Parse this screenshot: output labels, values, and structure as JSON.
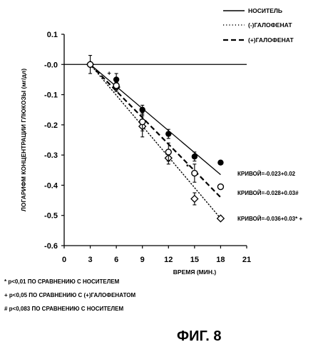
{
  "chart_data": {
    "type": "line",
    "xlabel": "ВРЕМЯ (МИН.)",
    "ylabel": "ЛОГАРИФМ КОНЦЕНТРАЦИИ ГЛЮКОЗЫ (мг/дл)",
    "xlim": [
      0,
      21
    ],
    "ylim": [
      -0.6,
      0.1
    ],
    "xticks": [
      0,
      3,
      6,
      9,
      12,
      15,
      18,
      21
    ],
    "yticks": [
      0.1,
      0.0,
      -0.1,
      -0.2,
      -0.3,
      -0.4,
      -0.5,
      -0.6
    ],
    "ytick_labels": [
      "0.1",
      "-0.0",
      "-0.1",
      "-0.2",
      "-0.3",
      "-0.4",
      "-0.5",
      "-0.6"
    ],
    "series": [
      {
        "name": "НОСИТЕЛЬ",
        "line_style": "solid",
        "marker": "filled-circle",
        "x": [
          3,
          6,
          9,
          12,
          15,
          18
        ],
        "y": [
          0.0,
          -0.05,
          -0.15,
          -0.23,
          -0.305,
          -0.325
        ],
        "error": [
          0.03,
          0.02,
          0.015,
          0.015,
          0.015,
          0.0
        ],
        "fit": {
          "x": [
            3,
            18
          ],
          "y": [
            0.0,
            -0.365
          ]
        },
        "slope_label": "КРИВОЙ=-0.023+0.02"
      },
      {
        "name": "(-)ГАЛОФЕНАТ",
        "line_style": "dotted",
        "marker": "open-diamond",
        "x": [
          3,
          6,
          9,
          12,
          15,
          18
        ],
        "y": [
          0.0,
          -0.075,
          -0.205,
          -0.31,
          -0.445,
          -0.51
        ],
        "error": [
          0.0,
          0.015,
          0.035,
          0.02,
          0.02,
          0.0
        ],
        "fit": {
          "x": [
            3,
            18
          ],
          "y": [
            0.0,
            -0.51
          ]
        }
      },
      {
        "name": "(+)ГАЛОФЕНАТ",
        "line_style": "dashed",
        "marker": "open-circle",
        "x": [
          3,
          6,
          9,
          12,
          15,
          18
        ],
        "y": [
          0.0,
          -0.07,
          -0.19,
          -0.29,
          -0.36,
          -0.405
        ],
        "error": [
          0.0,
          0.015,
          0.03,
          0.03,
          0.03,
          0.0
        ],
        "fit": {
          "x": [
            3,
            18
          ],
          "y": [
            0.0,
            -0.44
          ]
        }
      }
    ],
    "annotations": [
      {
        "text": "КРИВОЙ=-0.023+0.02",
        "series": "НОСИТЕЛЬ"
      },
      {
        "text": "КРИВОЙ=-0.028+0.03#",
        "series": "(+)ГАЛОФЕНАТ"
      },
      {
        "text": "КРИВОЙ=-0.036+0.03* +",
        "series": "(-)ГАЛОФЕНАТ"
      },
      {
        "text": "*",
        "x": 15,
        "y": -0.36
      },
      {
        "text": "+",
        "x": 6,
        "y": -0.05
      }
    ],
    "legend_position": "top-right",
    "grid": false
  },
  "footnotes": [
    "* p<0,01 ПО СРАВНЕНИЮ С НОСИТЕЛЕМ",
    "+ p<0,05 ПО СРАВНЕНИЮ С (+)ГАЛОФЕНАТОМ",
    "# p<0,083 ПО СРАВНЕНИЮ С НОСИТЕЛЕМ"
  ],
  "figure_label": "ФИГ. 8"
}
